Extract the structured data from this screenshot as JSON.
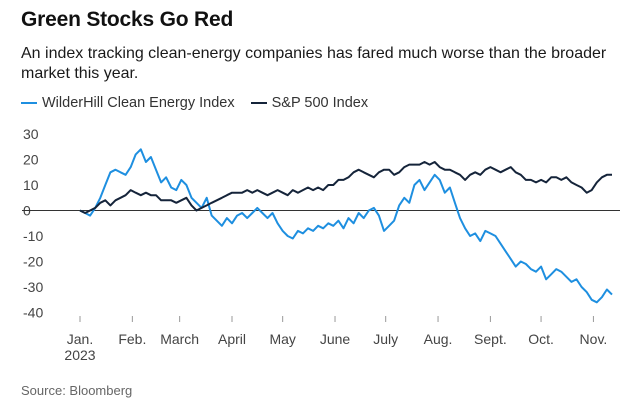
{
  "header": {
    "title": "Green Stocks Go Red",
    "subtitle": "An index tracking clean-energy companies has fared much worse than the broader market this year."
  },
  "footer": {
    "source": "Source: Bloomberg"
  },
  "colors": {
    "clean_energy": "#1e8fe0",
    "sp500": "#15243a",
    "zero_line": "#333333"
  },
  "chart_data": {
    "type": "line",
    "title": "Green Stocks Go Red",
    "xlabel": "",
    "ylabel": "",
    "ylim": [
      -42,
      33
    ],
    "yticks": [
      30,
      20,
      10,
      0,
      -10,
      -20,
      -30,
      -40
    ],
    "xticks": [
      {
        "date": "2023-01-01",
        "label": "Jan.",
        "sublabel": "2023"
      },
      {
        "date": "2023-02-01",
        "label": "Feb."
      },
      {
        "date": "2023-03-01",
        "label": "March"
      },
      {
        "date": "2023-04-01",
        "label": "April"
      },
      {
        "date": "2023-05-01",
        "label": "May"
      },
      {
        "date": "2023-06-01",
        "label": "June"
      },
      {
        "date": "2023-07-01",
        "label": "July"
      },
      {
        "date": "2023-08-01",
        "label": "Aug."
      },
      {
        "date": "2023-09-01",
        "label": "Sept."
      },
      {
        "date": "2023-10-01",
        "label": "Oct."
      },
      {
        "date": "2023-11-01",
        "label": "Nov."
      }
    ],
    "grid": "horizontal-at-zero",
    "legend_position": "top-left",
    "series": [
      {
        "name": "WilderHill Clean Energy Index",
        "color": "#1e8fe0",
        "points": [
          [
            "2023-01-01",
            0
          ],
          [
            "2023-01-04",
            -1
          ],
          [
            "2023-01-07",
            -2
          ],
          [
            "2023-01-10",
            1
          ],
          [
            "2023-01-13",
            5
          ],
          [
            "2023-01-16",
            10
          ],
          [
            "2023-01-19",
            15
          ],
          [
            "2023-01-22",
            16
          ],
          [
            "2023-01-25",
            15
          ],
          [
            "2023-01-28",
            14
          ],
          [
            "2023-01-31",
            17
          ],
          [
            "2023-02-03",
            22
          ],
          [
            "2023-02-06",
            24
          ],
          [
            "2023-02-09",
            19
          ],
          [
            "2023-02-12",
            21
          ],
          [
            "2023-02-15",
            16
          ],
          [
            "2023-02-18",
            11
          ],
          [
            "2023-02-21",
            13
          ],
          [
            "2023-02-24",
            9
          ],
          [
            "2023-02-27",
            8
          ],
          [
            "2023-03-02",
            12
          ],
          [
            "2023-03-05",
            10
          ],
          [
            "2023-03-08",
            5
          ],
          [
            "2023-03-11",
            3
          ],
          [
            "2023-03-14",
            1
          ],
          [
            "2023-03-17",
            5
          ],
          [
            "2023-03-20",
            -2
          ],
          [
            "2023-03-23",
            -4
          ],
          [
            "2023-03-26",
            -6
          ],
          [
            "2023-03-29",
            -3
          ],
          [
            "2023-04-01",
            -5
          ],
          [
            "2023-04-04",
            -2
          ],
          [
            "2023-04-07",
            -1
          ],
          [
            "2023-04-10",
            -3
          ],
          [
            "2023-04-13",
            -1
          ],
          [
            "2023-04-16",
            1
          ],
          [
            "2023-04-19",
            -1
          ],
          [
            "2023-04-22",
            -3
          ],
          [
            "2023-04-25",
            -1
          ],
          [
            "2023-04-28",
            -5
          ],
          [
            "2023-05-01",
            -8
          ],
          [
            "2023-05-04",
            -10
          ],
          [
            "2023-05-07",
            -11
          ],
          [
            "2023-05-10",
            -8
          ],
          [
            "2023-05-13",
            -9
          ],
          [
            "2023-05-16",
            -7
          ],
          [
            "2023-05-19",
            -8
          ],
          [
            "2023-05-22",
            -6
          ],
          [
            "2023-05-25",
            -7
          ],
          [
            "2023-05-28",
            -5
          ],
          [
            "2023-05-31",
            -6
          ],
          [
            "2023-06-03",
            -4
          ],
          [
            "2023-06-06",
            -7
          ],
          [
            "2023-06-09",
            -3
          ],
          [
            "2023-06-12",
            -5
          ],
          [
            "2023-06-15",
            -1
          ],
          [
            "2023-06-18",
            -3
          ],
          [
            "2023-06-21",
            0
          ],
          [
            "2023-06-24",
            1
          ],
          [
            "2023-06-27",
            -2
          ],
          [
            "2023-06-30",
            -8
          ],
          [
            "2023-07-03",
            -6
          ],
          [
            "2023-07-06",
            -4
          ],
          [
            "2023-07-09",
            2
          ],
          [
            "2023-07-12",
            5
          ],
          [
            "2023-07-15",
            3
          ],
          [
            "2023-07-18",
            10
          ],
          [
            "2023-07-21",
            12
          ],
          [
            "2023-07-24",
            8
          ],
          [
            "2023-07-27",
            11
          ],
          [
            "2023-07-30",
            14
          ],
          [
            "2023-08-02",
            12
          ],
          [
            "2023-08-05",
            7
          ],
          [
            "2023-08-08",
            9
          ],
          [
            "2023-08-11",
            3
          ],
          [
            "2023-08-14",
            -3
          ],
          [
            "2023-08-17",
            -7
          ],
          [
            "2023-08-20",
            -10
          ],
          [
            "2023-08-23",
            -9
          ],
          [
            "2023-08-26",
            -12
          ],
          [
            "2023-08-29",
            -8
          ],
          [
            "2023-09-01",
            -9
          ],
          [
            "2023-09-04",
            -10
          ],
          [
            "2023-09-07",
            -13
          ],
          [
            "2023-09-10",
            -16
          ],
          [
            "2023-09-13",
            -19
          ],
          [
            "2023-09-16",
            -22
          ],
          [
            "2023-09-19",
            -20
          ],
          [
            "2023-09-22",
            -21
          ],
          [
            "2023-09-25",
            -23
          ],
          [
            "2023-09-28",
            -24
          ],
          [
            "2023-10-01",
            -22
          ],
          [
            "2023-10-04",
            -27
          ],
          [
            "2023-10-07",
            -25
          ],
          [
            "2023-10-10",
            -23
          ],
          [
            "2023-10-13",
            -24
          ],
          [
            "2023-10-16",
            -26
          ],
          [
            "2023-10-19",
            -28
          ],
          [
            "2023-10-22",
            -27
          ],
          [
            "2023-10-25",
            -30
          ],
          [
            "2023-10-28",
            -32
          ],
          [
            "2023-10-31",
            -35
          ],
          [
            "2023-11-03",
            -36
          ],
          [
            "2023-11-06",
            -34
          ],
          [
            "2023-11-09",
            -31
          ],
          [
            "2023-11-12",
            -33
          ]
        ]
      },
      {
        "name": "S&P 500 Index",
        "color": "#15243a",
        "points": [
          [
            "2023-01-01",
            0
          ],
          [
            "2023-01-04",
            -1
          ],
          [
            "2023-01-07",
            0
          ],
          [
            "2023-01-10",
            1
          ],
          [
            "2023-01-13",
            3
          ],
          [
            "2023-01-16",
            4
          ],
          [
            "2023-01-19",
            2
          ],
          [
            "2023-01-22",
            4
          ],
          [
            "2023-01-25",
            5
          ],
          [
            "2023-01-28",
            6
          ],
          [
            "2023-01-31",
            8
          ],
          [
            "2023-02-03",
            7
          ],
          [
            "2023-02-06",
            6
          ],
          [
            "2023-02-09",
            7
          ],
          [
            "2023-02-12",
            6
          ],
          [
            "2023-02-15",
            6
          ],
          [
            "2023-02-18",
            4
          ],
          [
            "2023-02-21",
            4
          ],
          [
            "2023-02-24",
            4
          ],
          [
            "2023-02-27",
            3
          ],
          [
            "2023-03-02",
            4
          ],
          [
            "2023-03-05",
            5
          ],
          [
            "2023-03-08",
            2
          ],
          [
            "2023-03-11",
            0
          ],
          [
            "2023-03-14",
            1
          ],
          [
            "2023-03-17",
            2
          ],
          [
            "2023-03-20",
            3
          ],
          [
            "2023-03-23",
            4
          ],
          [
            "2023-03-26",
            5
          ],
          [
            "2023-03-29",
            6
          ],
          [
            "2023-04-01",
            7
          ],
          [
            "2023-04-04",
            7
          ],
          [
            "2023-04-07",
            7
          ],
          [
            "2023-04-10",
            8
          ],
          [
            "2023-04-13",
            7
          ],
          [
            "2023-04-16",
            8
          ],
          [
            "2023-04-19",
            7
          ],
          [
            "2023-04-22",
            6
          ],
          [
            "2023-04-25",
            7
          ],
          [
            "2023-04-28",
            8
          ],
          [
            "2023-05-01",
            7
          ],
          [
            "2023-05-04",
            6
          ],
          [
            "2023-05-07",
            8
          ],
          [
            "2023-05-10",
            7
          ],
          [
            "2023-05-13",
            8
          ],
          [
            "2023-05-16",
            9
          ],
          [
            "2023-05-19",
            8
          ],
          [
            "2023-05-22",
            9
          ],
          [
            "2023-05-25",
            8
          ],
          [
            "2023-05-28",
            10
          ],
          [
            "2023-05-31",
            10
          ],
          [
            "2023-06-03",
            12
          ],
          [
            "2023-06-06",
            12
          ],
          [
            "2023-06-09",
            13
          ],
          [
            "2023-06-12",
            15
          ],
          [
            "2023-06-15",
            16
          ],
          [
            "2023-06-18",
            15
          ],
          [
            "2023-06-21",
            14
          ],
          [
            "2023-06-24",
            13
          ],
          [
            "2023-06-27",
            15
          ],
          [
            "2023-06-30",
            16
          ],
          [
            "2023-07-03",
            16
          ],
          [
            "2023-07-06",
            14
          ],
          [
            "2023-07-09",
            15
          ],
          [
            "2023-07-12",
            17
          ],
          [
            "2023-07-15",
            18
          ],
          [
            "2023-07-18",
            18
          ],
          [
            "2023-07-21",
            18
          ],
          [
            "2023-07-24",
            19
          ],
          [
            "2023-07-27",
            18
          ],
          [
            "2023-07-30",
            19
          ],
          [
            "2023-08-02",
            17
          ],
          [
            "2023-08-05",
            16
          ],
          [
            "2023-08-08",
            16
          ],
          [
            "2023-08-11",
            15
          ],
          [
            "2023-08-14",
            14
          ],
          [
            "2023-08-17",
            12
          ],
          [
            "2023-08-20",
            14
          ],
          [
            "2023-08-23",
            15
          ],
          [
            "2023-08-26",
            14
          ],
          [
            "2023-08-29",
            16
          ],
          [
            "2023-09-01",
            17
          ],
          [
            "2023-09-04",
            16
          ],
          [
            "2023-09-07",
            15
          ],
          [
            "2023-09-10",
            16
          ],
          [
            "2023-09-13",
            17
          ],
          [
            "2023-09-16",
            15
          ],
          [
            "2023-09-19",
            14
          ],
          [
            "2023-09-22",
            12
          ],
          [
            "2023-09-25",
            12
          ],
          [
            "2023-09-28",
            11
          ],
          [
            "2023-10-01",
            12
          ],
          [
            "2023-10-04",
            11
          ],
          [
            "2023-10-07",
            13
          ],
          [
            "2023-10-10",
            13
          ],
          [
            "2023-10-13",
            12
          ],
          [
            "2023-10-16",
            13
          ],
          [
            "2023-10-19",
            11
          ],
          [
            "2023-10-22",
            10
          ],
          [
            "2023-10-25",
            9
          ],
          [
            "2023-10-28",
            7
          ],
          [
            "2023-10-31",
            8
          ],
          [
            "2023-11-03",
            11
          ],
          [
            "2023-11-06",
            13
          ],
          [
            "2023-11-09",
            14
          ],
          [
            "2023-11-12",
            14
          ]
        ]
      }
    ]
  }
}
